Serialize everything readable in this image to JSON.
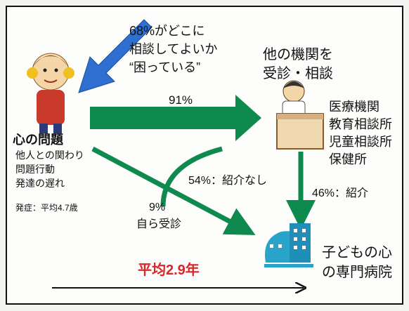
{
  "callout": {
    "lines": [
      "68%がどこに",
      "相談してよいか",
      "“困っている”"
    ]
  },
  "child": {
    "title": "心の問題",
    "symptoms": [
      "他人との関わり",
      "問題行動",
      "発達の遅れ"
    ],
    "onset": "発症：平均4.7歳"
  },
  "other_agencies": {
    "title": [
      "他の機関を",
      "受診・相談"
    ],
    "list": [
      "医療機関",
      "教育相談所",
      "児童相談所",
      "保健所"
    ]
  },
  "flows": {
    "to_agencies": "91%",
    "no_referral": "54%：紹介なし",
    "referral": "46%：紹介",
    "self": [
      "9%",
      "自ら受診"
    ]
  },
  "hospital": {
    "lines": [
      "子どもの心",
      "の専門病院"
    ]
  },
  "timeline": "平均2.9年"
}
